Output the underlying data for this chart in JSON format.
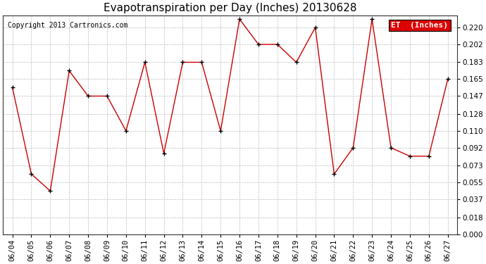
{
  "title": "Evapotranspiration per Day (Inches) 20130628",
  "copyright": "Copyright 2013 Cartronics.com",
  "legend_label": "ET  (Inches)",
  "legend_bg": "#dd0000",
  "legend_text_color": "#ffffff",
  "x_labels": [
    "06/04",
    "06/05",
    "06/06",
    "06/07",
    "06/08",
    "06/09",
    "06/10",
    "06/11",
    "06/12",
    "06/13",
    "06/14",
    "06/15",
    "06/16",
    "06/17",
    "06/18",
    "06/19",
    "06/20",
    "06/21",
    "06/22",
    "06/23",
    "06/24",
    "06/25",
    "06/26",
    "06/27"
  ],
  "y_values": [
    0.156,
    0.064,
    0.046,
    0.174,
    0.147,
    0.147,
    0.11,
    0.183,
    0.086,
    0.183,
    0.183,
    0.11,
    0.229,
    0.202,
    0.202,
    0.183,
    0.22,
    0.064,
    0.092,
    0.229,
    0.092,
    0.083,
    0.083,
    0.165
  ],
  "line_color": "#cc0000",
  "marker_color": "#000000",
  "bg_color": "#ffffff",
  "plot_bg_color": "#ffffff",
  "grid_color": "#bbbbbb",
  "ylim": [
    0.0,
    0.233
  ],
  "yticks": [
    0.0,
    0.018,
    0.037,
    0.055,
    0.073,
    0.092,
    0.11,
    0.128,
    0.147,
    0.165,
    0.183,
    0.202,
    0.22
  ],
  "title_fontsize": 11,
  "copyright_fontsize": 7,
  "axis_fontsize": 7.5
}
